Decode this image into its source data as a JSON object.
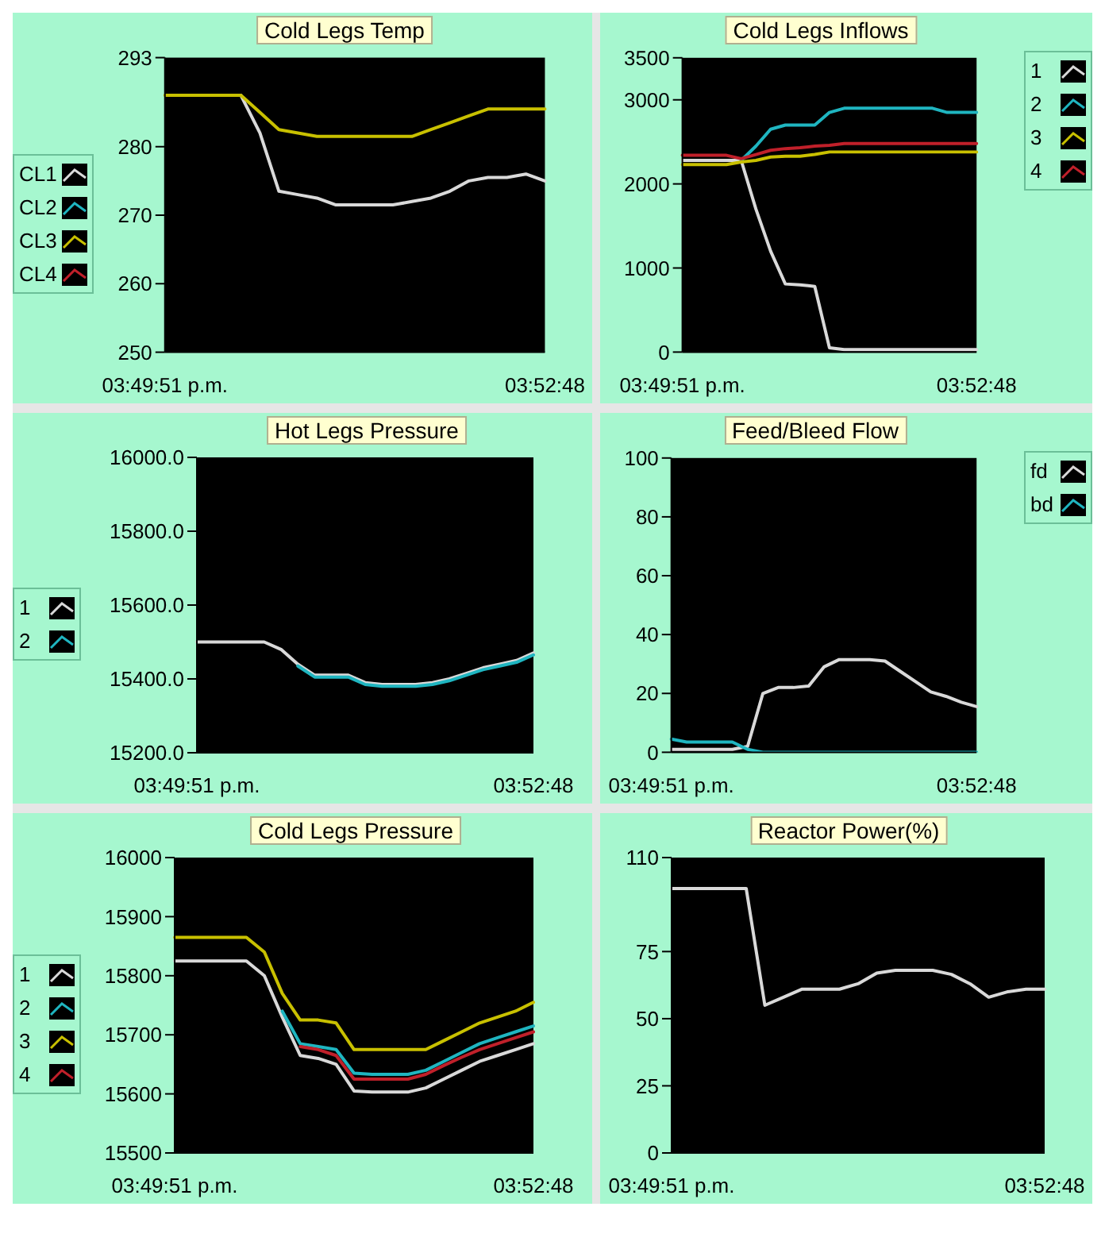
{
  "chart_data": [
    {
      "type": "line",
      "title": "Cold Legs Temp",
      "legend": "left",
      "categories": [
        "03:49:51 p.m.",
        null,
        null,
        null,
        null,
        null,
        null,
        null,
        null,
        null,
        null,
        null,
        null,
        null,
        null,
        null,
        null,
        null,
        null,
        null,
        "03:52:48"
      ],
      "ylim": [
        250,
        293
      ],
      "yticks": [
        250,
        260,
        270,
        280,
        293
      ],
      "series": [
        {
          "name": "CL1",
          "color": "#d9d9d9",
          "values": [
            null,
            null,
            null,
            null,
            287.5,
            282,
            273.5,
            273,
            272.5,
            271.5,
            271.5,
            271.5,
            271.5,
            272,
            272.5,
            273.5,
            275,
            275.5,
            275.5,
            276,
            275
          ]
        },
        {
          "name": "CL2",
          "color": "#1fb5c0",
          "values": [
            null,
            null,
            null,
            null,
            null,
            null,
            null,
            null,
            null,
            null,
            null,
            null,
            null,
            null,
            null,
            null,
            null,
            null,
            null,
            null,
            null
          ]
        },
        {
          "name": "CL3",
          "color": "#c8c000",
          "values": [
            287.5,
            287.5,
            287.5,
            287.5,
            287.5,
            285,
            282.5,
            282,
            281.5,
            281.5,
            281.5,
            281.5,
            281.5,
            281.5,
            282.5,
            283.5,
            284.5,
            285.5,
            285.5,
            285.5,
            285.5
          ]
        },
        {
          "name": "CL4",
          "color": "#c0202a",
          "values": [
            null,
            null,
            null,
            null,
            null,
            null,
            null,
            null,
            null,
            null,
            null,
            null,
            null,
            null,
            null,
            null,
            null,
            null,
            null,
            null,
            null
          ]
        }
      ]
    },
    {
      "type": "line",
      "title": "Cold Legs Inflows",
      "legend": "top right",
      "categories": [
        "03:49:51 p.m.",
        null,
        null,
        null,
        null,
        null,
        null,
        null,
        null,
        null,
        null,
        null,
        null,
        null,
        null,
        null,
        null,
        null,
        null,
        null,
        "03:52:48"
      ],
      "ylim": [
        0,
        3500
      ],
      "yticks": [
        0,
        1000,
        2000,
        3000,
        3500
      ],
      "series": [
        {
          "name": "1",
          "color": "#d9d9d9",
          "values": [
            2280,
            2280,
            2280,
            2280,
            2280,
            1700,
            1200,
            810,
            800,
            780,
            50,
            30,
            30,
            30,
            30,
            30,
            30,
            30,
            30,
            30,
            30
          ]
        },
        {
          "name": "2",
          "color": "#1fb5c0",
          "values": [
            null,
            null,
            null,
            null,
            2280,
            2450,
            2650,
            2700,
            2700,
            2700,
            2850,
            2900,
            2900,
            2900,
            2900,
            2900,
            2900,
            2900,
            2850,
            2850,
            2850
          ]
        },
        {
          "name": "3",
          "color": "#c8c000",
          "values": [
            2230,
            2230,
            2230,
            2230,
            2260,
            2280,
            2320,
            2330,
            2330,
            2350,
            2380,
            2380,
            2380,
            2380,
            2380,
            2380,
            2380,
            2380,
            2380,
            2380,
            2380
          ]
        },
        {
          "name": "4",
          "color": "#c0202a",
          "values": [
            2340,
            2340,
            2340,
            2340,
            2300,
            2350,
            2400,
            2420,
            2430,
            2450,
            2460,
            2480,
            2480,
            2480,
            2480,
            2480,
            2480,
            2480,
            2480,
            2480,
            2480
          ]
        }
      ]
    },
    {
      "type": "line",
      "title": "Hot Legs Pressure",
      "legend": "left",
      "categories": [
        "03:49:51 p.m.",
        null,
        null,
        null,
        null,
        null,
        null,
        null,
        null,
        null,
        null,
        null,
        null,
        null,
        null,
        null,
        null,
        null,
        null,
        null,
        "03:52:48"
      ],
      "ylim": [
        15200,
        16000
      ],
      "yticks": [
        {
          "value": 15200,
          "label": "15200.0"
        },
        {
          "value": 15400,
          "label": "15400.0"
        },
        {
          "value": 15600,
          "label": "15600.0"
        },
        {
          "value": 15800,
          "label": "15800.0"
        },
        {
          "value": 16000,
          "label": "16000.0"
        }
      ],
      "series": [
        {
          "name": "1",
          "color": "#d9d9d9",
          "values": [
            15500,
            15500,
            15500,
            15500,
            15500,
            15480,
            15440,
            15410,
            15410,
            15410,
            15390,
            15385,
            15385,
            15385,
            15390,
            15400,
            15415,
            15430,
            15440,
            15450,
            15470
          ]
        },
        {
          "name": "2",
          "color": "#1fb5c0",
          "values": [
            null,
            null,
            null,
            null,
            null,
            null,
            15435,
            15405,
            15405,
            15405,
            15385,
            15380,
            15380,
            15380,
            15385,
            15395,
            15410,
            15425,
            15435,
            15445,
            15465
          ]
        }
      ]
    },
    {
      "type": "line",
      "title": "Feed/Bleed Flow",
      "legend": "top right",
      "categories": [
        "03:49:51 p.m.",
        null,
        null,
        null,
        null,
        null,
        null,
        null,
        null,
        null,
        null,
        null,
        null,
        null,
        null,
        null,
        null,
        null,
        null,
        null,
        "03:52:48"
      ],
      "ylim": [
        0,
        100
      ],
      "yticks": [
        0,
        20,
        40,
        60,
        80,
        100
      ],
      "series": [
        {
          "name": "fd",
          "color": "#d9d9d9",
          "values": [
            1,
            1,
            1,
            1,
            1,
            2,
            20,
            22,
            22,
            22.5,
            29,
            31.5,
            31.5,
            31.5,
            31,
            27.5,
            24,
            20.5,
            19,
            17,
            15.5
          ]
        },
        {
          "name": "bd",
          "color": "#1fb5c0",
          "values": [
            4.5,
            3.5,
            3.5,
            3.5,
            3.5,
            1,
            0,
            0,
            0,
            0,
            0,
            0,
            0,
            0,
            0,
            0,
            0,
            0,
            0,
            0,
            0
          ]
        }
      ]
    },
    {
      "type": "line",
      "title": "Cold Legs Pressure",
      "legend": "left",
      "categories": [
        "03:49:51 p.m.",
        null,
        null,
        null,
        null,
        null,
        null,
        null,
        null,
        null,
        null,
        null,
        null,
        null,
        null,
        null,
        null,
        null,
        null,
        null,
        "03:52:48"
      ],
      "ylim": [
        15500,
        16000
      ],
      "yticks": [
        15500,
        15600,
        15700,
        15800,
        15900,
        16000
      ],
      "series": [
        {
          "name": "1",
          "color": "#d9d9d9",
          "values": [
            15825,
            15825,
            15825,
            15825,
            15825,
            15800,
            15730,
            15665,
            15660,
            15650,
            15605,
            15603,
            15603,
            15603,
            15610,
            15625,
            15640,
            15655,
            15665,
            15675,
            15685
          ]
        },
        {
          "name": "2",
          "color": "#1fb5c0",
          "values": [
            null,
            null,
            null,
            null,
            null,
            null,
            15740,
            15685,
            15680,
            15675,
            15635,
            15633,
            15633,
            15633,
            15640,
            15655,
            15670,
            15685,
            15695,
            15705,
            15715
          ]
        },
        {
          "name": "3",
          "color": "#c8c000",
          "values": [
            15865,
            15865,
            15865,
            15865,
            15865,
            15840,
            15770,
            15725,
            15725,
            15720,
            15675,
            15675,
            15675,
            15675,
            15675,
            15690,
            15705,
            15720,
            15730,
            15740,
            15755
          ]
        },
        {
          "name": "4",
          "color": "#c0202a",
          "values": [
            null,
            null,
            null,
            null,
            null,
            null,
            null,
            15680,
            15675,
            15665,
            15625,
            15625,
            15625,
            15625,
            15633,
            15648,
            15662,
            15675,
            15685,
            15695,
            15705
          ]
        }
      ]
    },
    {
      "type": "line",
      "title": "Reactor Power(%)",
      "categories": [
        "03:49:51 p.m.",
        null,
        null,
        null,
        null,
        null,
        null,
        null,
        null,
        null,
        null,
        null,
        null,
        null,
        null,
        null,
        null,
        null,
        null,
        null,
        "03:52:48"
      ],
      "ylim": [
        0,
        110
      ],
      "yticks": [
        0,
        25,
        50,
        75,
        110
      ],
      "series": [
        {
          "color": "#d9d9d9",
          "values": [
            98.5,
            98.5,
            98.5,
            98.5,
            98.5,
            55,
            58,
            61,
            61,
            61,
            63,
            67,
            68,
            68,
            68,
            66.5,
            63,
            58,
            60,
            61,
            61
          ]
        }
      ]
    }
  ]
}
